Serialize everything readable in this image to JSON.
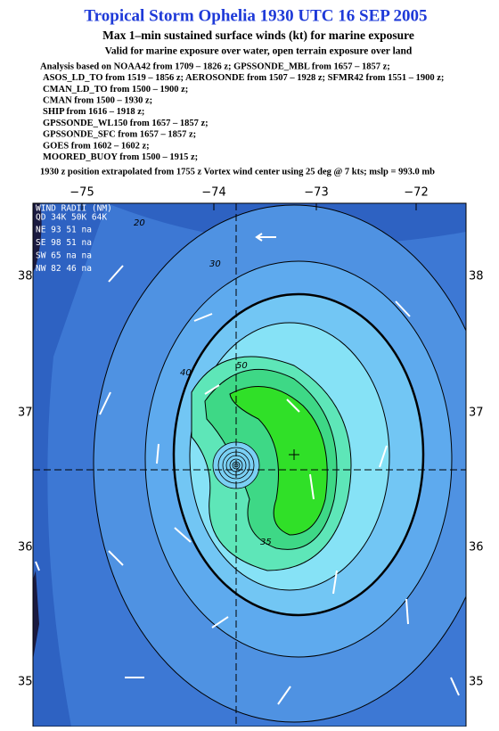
{
  "header": {
    "title": "Tropical Storm Ophelia 1930 UTC 16 SEP 2005",
    "subtitle": "Max 1–min sustained surface winds (kt) for marine exposure",
    "validity": "Valid for marine exposure over water, open terrain exposure over land"
  },
  "analysis": [
    "Analysis based on  NOAA42 from 1709 – 1826 z;  GPSSONDE_MBL from 1657 – 1857 z;",
    "ASOS_LD_TO from 1519 – 1856 z;  AEROSONDE from 1507 – 1928 z;  SFMR42 from 1551 – 1900 z;",
    "CMAN_LD_TO from 1500 – 1900 z;",
    "CMAN from 1500 – 1930 z;",
    "SHIP from 1616 – 1918 z;",
    "GPSSONDE_WL150 from 1657 – 1857 z;",
    "GPSSONDE_SFC from 1657 – 1857 z;",
    "GOES from 1602 – 1602 z;",
    "MOORED_BUOY from 1500 – 1915 z;"
  ],
  "position_note": "1930 z position extrapolated from 1755 z Vortex wind center using 25 deg @ 7 kts; mslp = 993.0 mb",
  "map": {
    "lon_labels": [
      "−75",
      "−74",
      "−73",
      "−72"
    ],
    "lat_labels": [
      "38",
      "37",
      "36",
      "35"
    ],
    "wind_radii": {
      "title": "WIND RADII (NM)",
      "header": "QD 34K 50K 64K",
      "rows": [
        "NE  93  51  na",
        "SE  98  51  na",
        "SW  65  na  na",
        "NW  82  46  na"
      ]
    },
    "contour_labels": [
      "20",
      "30",
      "40",
      "50",
      "35"
    ]
  }
}
